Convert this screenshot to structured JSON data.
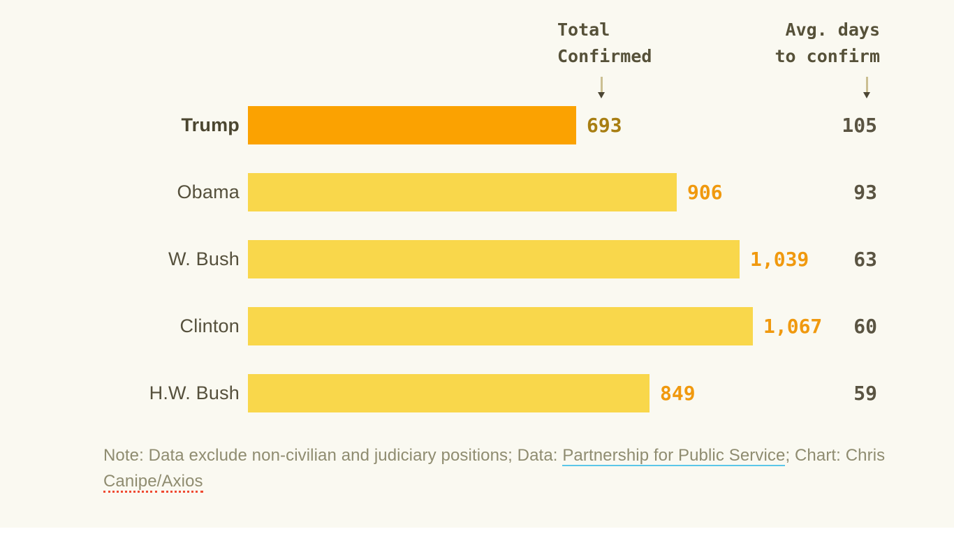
{
  "colors": {
    "background": "#FAF9F1",
    "bar_default": "#F9D74B",
    "bar_highlight": "#FBA201",
    "value_default": "#F0990E",
    "value_highlight": "#A87E12",
    "ink": "#565139",
    "note_text": "#8F8C70",
    "link_underline": "#5BC6E9",
    "spellcheck_dots": "#EF4A31"
  },
  "headers": {
    "total_confirmed": "Total\nConfirmed",
    "avg_days": "Avg. days\nto confirm"
  },
  "chart_data": {
    "type": "bar",
    "orientation": "horizontal",
    "categories": [
      "Trump",
      "Obama",
      "W. Bush",
      "Clinton",
      "H.W. Bush"
    ],
    "series": [
      {
        "name": "Total Confirmed",
        "values": [
          693,
          906,
          1039,
          1067,
          849
        ]
      },
      {
        "name": "Avg. days to confirm",
        "values": [
          105,
          93,
          63,
          60,
          59
        ]
      }
    ],
    "xlim": [
      0,
      1067
    ],
    "highlighted_category": "Trump",
    "rows": [
      {
        "president": "Trump",
        "total_confirmed": 693,
        "total_confirmed_label": "693",
        "avg_days": "105",
        "highlight": true
      },
      {
        "president": "Obama",
        "total_confirmed": 906,
        "total_confirmed_label": "906",
        "avg_days": "93",
        "highlight": false
      },
      {
        "president": "W. Bush",
        "total_confirmed": 1039,
        "total_confirmed_label": "1,039",
        "avg_days": "63",
        "highlight": false
      },
      {
        "president": "Clinton",
        "total_confirmed": 1067,
        "total_confirmed_label": "1,067",
        "avg_days": "60",
        "highlight": false
      },
      {
        "president": "H.W. Bush",
        "total_confirmed": 849,
        "total_confirmed_label": "849",
        "avg_days": "59",
        "highlight": false
      }
    ]
  },
  "note": {
    "prefix": "Note: Data exclude non-civilian and judiciary positions; Data: ",
    "link": "Partnership for Public Service",
    "middle": "; Chart: ",
    "chris": "Chris ",
    "canipe": "Canipe",
    "slash": "/",
    "axios": "Axios"
  }
}
